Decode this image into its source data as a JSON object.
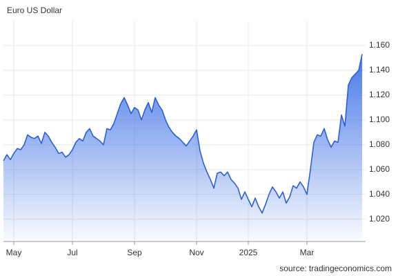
{
  "chart_data": {
    "type": "area",
    "title": "Euro US Dollar",
    "source": "source: tradingeconomics.com",
    "color": "#2b5fd9",
    "grid": true,
    "ylim": [
      1.002,
      1.18
    ],
    "yticks": [
      {
        "value": 1.02,
        "label": "1.020"
      },
      {
        "value": 1.04,
        "label": "1.040"
      },
      {
        "value": 1.06,
        "label": "1.060"
      },
      {
        "value": 1.08,
        "label": "1.080"
      },
      {
        "value": 1.1,
        "label": "1.100"
      },
      {
        "value": 1.12,
        "label": "1.120"
      },
      {
        "value": 1.14,
        "label": "1.140"
      },
      {
        "value": 1.16,
        "label": "1.160"
      }
    ],
    "categories": [
      null,
      null,
      null,
      "May",
      null,
      null,
      null,
      null,
      null,
      null,
      null,
      null,
      null,
      null,
      null,
      null,
      null,
      null,
      null,
      null,
      "Jul",
      null,
      null,
      null,
      null,
      null,
      null,
      null,
      null,
      null,
      null,
      null,
      null,
      null,
      null,
      null,
      null,
      null,
      "Sep",
      null,
      null,
      null,
      null,
      null,
      null,
      null,
      null,
      null,
      null,
      null,
      null,
      null,
      null,
      null,
      null,
      null,
      "Nov",
      null,
      null,
      null,
      null,
      null,
      null,
      null,
      null,
      null,
      null,
      null,
      null,
      null,
      null,
      "2025",
      null,
      null,
      null,
      null,
      null,
      null,
      null,
      null,
      null,
      null,
      null,
      null,
      null,
      null,
      null,
      null,
      "Mar",
      null,
      null,
      null,
      null,
      null,
      null,
      null,
      null,
      null,
      null,
      null,
      null,
      null,
      null,
      null,
      null
    ],
    "values": [
      1.067,
      1.072,
      1.068,
      1.073,
      1.077,
      1.076,
      1.08,
      1.088,
      1.086,
      1.085,
      1.087,
      1.081,
      1.09,
      1.087,
      1.082,
      1.078,
      1.073,
      1.074,
      1.07,
      1.072,
      1.076,
      1.082,
      1.085,
      1.083,
      1.09,
      1.093,
      1.087,
      1.085,
      1.083,
      1.08,
      1.093,
      1.092,
      1.097,
      1.105,
      1.113,
      1.118,
      1.112,
      1.105,
      1.11,
      1.108,
      1.1,
      1.108,
      1.114,
      1.106,
      1.118,
      1.112,
      1.108,
      1.1,
      1.094,
      1.09,
      1.087,
      1.085,
      1.082,
      1.079,
      1.083,
      1.087,
      1.092,
      1.075,
      1.065,
      1.058,
      1.052,
      1.045,
      1.057,
      1.058,
      1.055,
      1.058,
      1.052,
      1.049,
      1.045,
      1.036,
      1.042,
      1.036,
      1.03,
      1.037,
      1.03,
      1.025,
      1.032,
      1.04,
      1.046,
      1.042,
      1.037,
      1.042,
      1.033,
      1.038,
      1.047,
      1.045,
      1.05,
      1.046,
      1.04,
      1.06,
      1.082,
      1.088,
      1.087,
      1.093,
      1.084,
      1.078,
      1.083,
      1.082,
      1.104,
      1.095,
      1.128,
      1.134,
      1.137,
      1.14,
      1.153
    ]
  }
}
